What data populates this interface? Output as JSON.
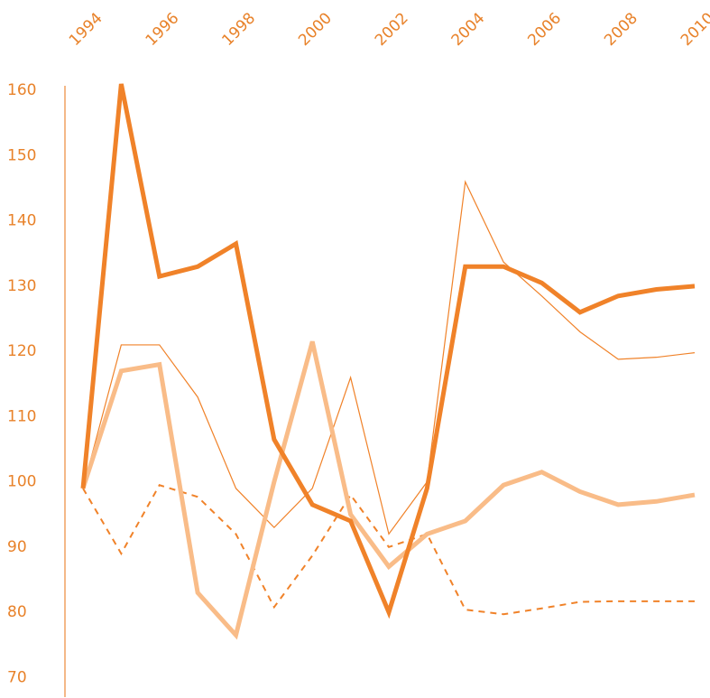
{
  "chart_data": {
    "type": "line",
    "x": [
      1994,
      1995,
      1996,
      1997,
      1998,
      1999,
      2000,
      2001,
      2002,
      2003,
      2004,
      2005,
      2006,
      2007,
      2008,
      2009,
      2010
    ],
    "series": [
      {
        "color": "#f08229",
        "width": 1.2,
        "dashed": false,
        "values": [
          99,
          121,
          121,
          113,
          99,
          93,
          99,
          116,
          92,
          100,
          146,
          133.7,
          128.5,
          123,
          118.8,
          119.1,
          119.8
        ]
      },
      {
        "color": "#f08229",
        "width": 2,
        "dashed": true,
        "values": [
          99,
          89,
          99.5,
          97.7,
          92,
          80.8,
          88.7,
          98,
          90,
          92,
          80.4,
          79.7,
          80.6,
          81.6,
          81.7,
          81.7,
          81.7
        ]
      },
      {
        "color": "#f9bc88",
        "width": 5,
        "dashed": false,
        "values": [
          99,
          117,
          118,
          83,
          76.5,
          100,
          121.5,
          95,
          87,
          92,
          94,
          99.5,
          101.5,
          98.5,
          96.5,
          97,
          98
        ]
      },
      {
        "color": "#f08229",
        "width": 5,
        "dashed": false,
        "values": [
          99,
          161,
          131.5,
          133,
          136.5,
          106.5,
          96.5,
          94,
          80,
          99,
          133,
          133,
          130.5,
          126,
          128.5,
          129.5,
          130
        ]
      }
    ],
    "xlim": [
      1994,
      2010
    ],
    "xticks": [
      1994,
      1996,
      1998,
      2000,
      2002,
      2004,
      2006,
      2008,
      2010
    ],
    "ylim": [
      67,
      161
    ],
    "yticks": [
      70,
      80,
      90,
      100,
      110,
      120,
      130,
      140,
      150,
      160
    ],
    "grid": false,
    "label_color": "#e8822a"
  }
}
